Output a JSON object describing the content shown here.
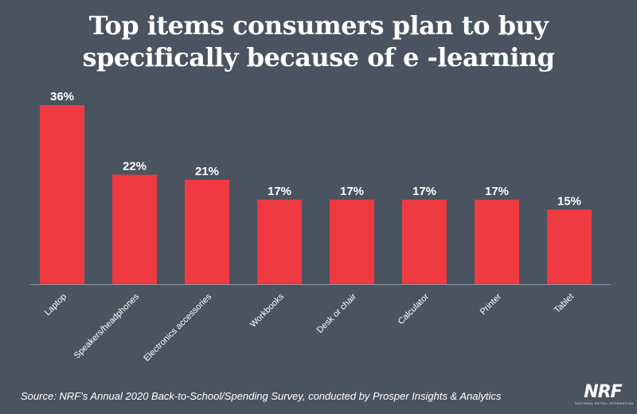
{
  "chart_data": {
    "type": "bar",
    "title_lines": [
      "Top items consumers plan to buy",
      "specifically because of e -learning"
    ],
    "categories": [
      "Laptop",
      "Speakers/headphones",
      "Electronics accessories",
      "Workbooks",
      "Desk or chair",
      "Calculator",
      "Printer",
      "Tablet"
    ],
    "values": [
      36,
      22,
      21,
      17,
      17,
      17,
      17,
      15
    ],
    "value_labels": [
      "36%",
      "22%",
      "21%",
      "17%",
      "17%",
      "17%",
      "17%",
      "15%"
    ],
    "ylim": [
      0,
      36
    ],
    "bar_color": "#ee3a40",
    "axis_color": "#8a929c",
    "grid": false,
    "legend": "none"
  },
  "source": "Source: NRF’s Annual 2020 Back-to-School/Spending Survey, conducted by Prosper Insights & Analytics",
  "logo": {
    "text": "NRF",
    "tagline": "NATIONAL RETAIL FEDERATION"
  }
}
